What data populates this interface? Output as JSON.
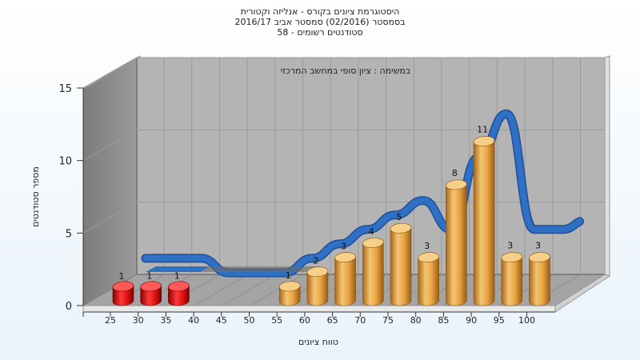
{
  "chart_data": {
    "type": "bar",
    "title_lines": [
      "היסטוגרמת ציונים בקורס - אנליזה וקטורית",
      "בסמסטר (02/2016) סמסטר אביב 2016/17",
      "סטודנטים רשומים - 58"
    ],
    "annotation": "במשימה : ציון סופי במחשב המרכזי",
    "xlabel": "טווח ציונים",
    "ylabel": "מספר סטודנטים",
    "ylim": [
      0,
      15
    ],
    "yticks": [
      0,
      5,
      10,
      15
    ],
    "grid": true,
    "categories": [
      "25",
      "30",
      "35",
      "40",
      "45",
      "50",
      "55",
      "60",
      "65",
      "70",
      "75",
      "80",
      "85",
      "90",
      "95",
      "100"
    ],
    "values": [
      1,
      1,
      1,
      0,
      0,
      0,
      1,
      2,
      3,
      4,
      5,
      3,
      8,
      11,
      3,
      3
    ],
    "bar_colors": [
      "#e01010",
      "#e01010",
      "#e01010",
      null,
      null,
      null,
      "#e6a040",
      "#e6a040",
      "#e6a040",
      "#e6a040",
      "#e6a040",
      "#e6a040",
      "#e6a040",
      "#e6a040",
      "#e6a040",
      "#e6a040"
    ],
    "curve_color": "#2f6fc4"
  }
}
